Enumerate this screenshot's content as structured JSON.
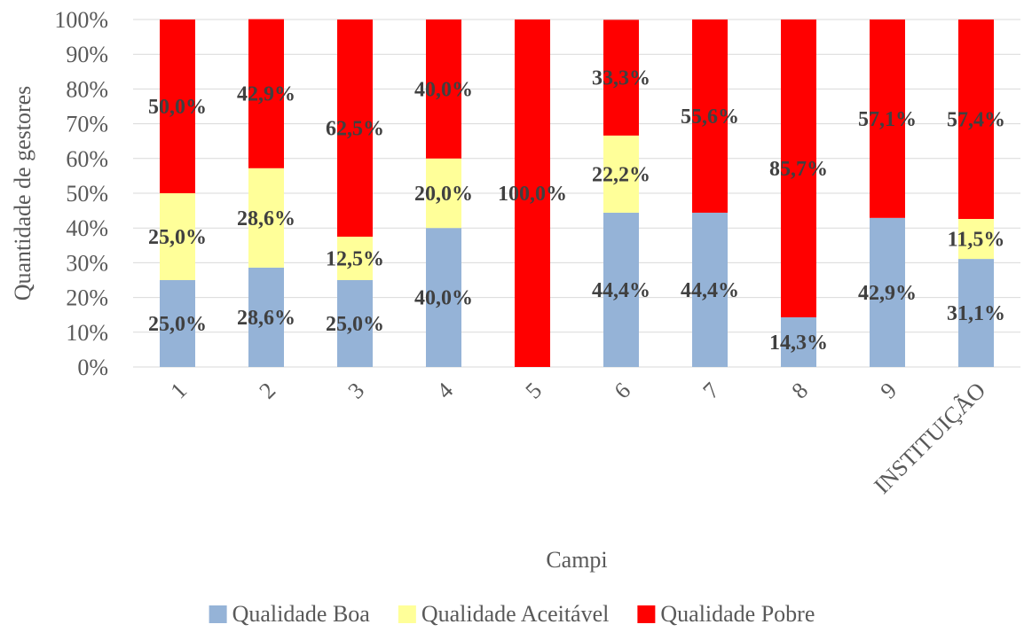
{
  "chart_data": {
    "type": "bar",
    "stacked": true,
    "percent_stacked": true,
    "categories": [
      "1",
      "2",
      "3",
      "4",
      "5",
      "6",
      "7",
      "8",
      "9",
      "INSTITUIÇÃO"
    ],
    "series": [
      {
        "name": "Qualidade Boa",
        "color": "#95b3d7",
        "values": [
          25.0,
          28.6,
          25.0,
          40.0,
          0,
          44.4,
          44.4,
          14.3,
          42.9,
          31.1
        ],
        "labels": [
          "25,0%",
          "28,6%",
          "25,0%",
          "40,0%",
          "",
          "44,4%",
          "44,4%",
          "14,3%",
          "42,9%",
          "31,1%"
        ]
      },
      {
        "name": "Qualidade Aceitável",
        "color": "#ffff99",
        "values": [
          25.0,
          28.6,
          12.5,
          20.0,
          0,
          22.2,
          0,
          0,
          0,
          11.5
        ],
        "labels": [
          "25,0%",
          "28,6%",
          "12,5%",
          "20,0%",
          "",
          "22,2%",
          "",
          "",
          "",
          "11,5%"
        ]
      },
      {
        "name": "Qualidade Pobre",
        "color": "#ff0000",
        "values": [
          50.0,
          42.9,
          62.5,
          40.0,
          100.0,
          33.3,
          55.6,
          85.7,
          57.1,
          57.4
        ],
        "labels": [
          "50,0%",
          "42,9%",
          "62,5%",
          "40,0%",
          "100,0%",
          "33,3%",
          "55,6%",
          "85,7%",
          "57,1%",
          "57,4%"
        ]
      }
    ],
    "y_ticks": [
      "0%",
      "10%",
      "20%",
      "30%",
      "40%",
      "50%",
      "60%",
      "70%",
      "80%",
      "90%",
      "100%"
    ],
    "ylim": [
      0,
      100
    ],
    "xlabel": "Campi",
    "ylabel": "Quantidade de gestores",
    "grid": true,
    "legend_position": "bottom"
  }
}
